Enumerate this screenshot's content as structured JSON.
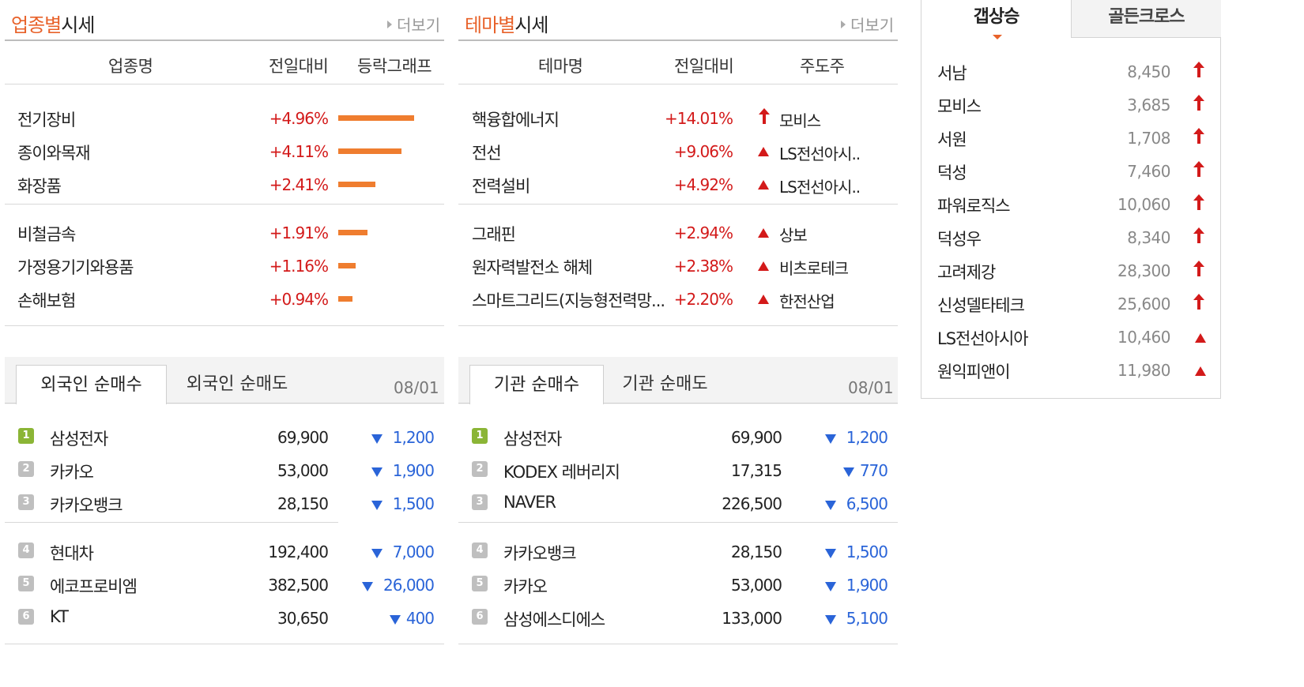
{
  "industry": {
    "title_accent": "업종별",
    "title_rest": "시세",
    "more": "더보기",
    "headers": [
      "업종명",
      "전일대비",
      "등락그래프"
    ],
    "rows": [
      {
        "name": "전기장비",
        "pct": "+4.96%",
        "bar_value": 4.96
      },
      {
        "name": "종이와목재",
        "pct": "+4.11%",
        "bar_value": 4.11
      },
      {
        "name": "화장품",
        "pct": "+2.41%",
        "bar_value": 2.41
      },
      {
        "name": "비철금속",
        "pct": "+1.91%",
        "bar_value": 1.91
      },
      {
        "name": "가정용기기와용품",
        "pct": "+1.16%",
        "bar_value": 1.16
      },
      {
        "name": "손해보험",
        "pct": "+0.94%",
        "bar_value": 0.94
      }
    ]
  },
  "theme": {
    "title_accent": "테마별",
    "title_rest": "시세",
    "more": "더보기",
    "headers": [
      "테마명",
      "전일대비",
      "주도주"
    ],
    "rows": [
      {
        "name": "핵융합에너지",
        "pct": "+14.01%",
        "icon": "up-arrow-icon",
        "leader": "모비스"
      },
      {
        "name": "전선",
        "pct": "+9.06%",
        "icon": "up-triangle-icon",
        "leader": "LS전선아시.."
      },
      {
        "name": "전력설비",
        "pct": "+4.92%",
        "icon": "up-triangle-icon",
        "leader": "LS전선아시.."
      },
      {
        "name": "그래핀",
        "pct": "+2.94%",
        "icon": "up-triangle-icon",
        "leader": "상보"
      },
      {
        "name": "원자력발전소 해체",
        "pct": "+2.38%",
        "icon": "up-triangle-icon",
        "leader": "비츠로테크"
      },
      {
        "name": "스마트그리드(지능형전력망...",
        "pct": "+2.20%",
        "icon": "up-triangle-icon",
        "leader": "한전산업"
      }
    ]
  },
  "foreign": {
    "tabs": [
      "외국인 순매수",
      "외국인 순매도"
    ],
    "date": "08/01",
    "rows": [
      {
        "rank": "1",
        "name": "삼성전자",
        "price": "69,900",
        "change": "1,200"
      },
      {
        "rank": "2",
        "name": "카카오",
        "price": "53,000",
        "change": "1,900"
      },
      {
        "rank": "3",
        "name": "카카오뱅크",
        "price": "28,150",
        "change": "1,500"
      },
      {
        "rank": "4",
        "name": "현대차",
        "price": "192,400",
        "change": "7,000"
      },
      {
        "rank": "5",
        "name": "에코프로비엠",
        "price": "382,500",
        "change": "26,000"
      },
      {
        "rank": "6",
        "name": "KT",
        "price": "30,650",
        "change": "400"
      }
    ]
  },
  "institution": {
    "tabs": [
      "기관 순매수",
      "기관 순매도"
    ],
    "date": "08/01",
    "rows": [
      {
        "rank": "1",
        "name": "삼성전자",
        "price": "69,900",
        "change": "1,200"
      },
      {
        "rank": "2",
        "name": "KODEX 레버리지",
        "price": "17,315",
        "change": "770"
      },
      {
        "rank": "3",
        "name": "NAVER",
        "price": "226,500",
        "change": "6,500"
      },
      {
        "rank": "4",
        "name": "카카오뱅크",
        "price": "28,150",
        "change": "1,500"
      },
      {
        "rank": "5",
        "name": "카카오",
        "price": "53,000",
        "change": "1,900"
      },
      {
        "rank": "6",
        "name": "삼성에스디에스",
        "price": "133,000",
        "change": "5,100"
      }
    ]
  },
  "right_panel": {
    "tabs": [
      "갭상승",
      "골든크로스"
    ],
    "rows": [
      {
        "name": "서남",
        "price": "8,450",
        "icon": "up-arrow-icon"
      },
      {
        "name": "모비스",
        "price": "3,685",
        "icon": "up-arrow-icon"
      },
      {
        "name": "서원",
        "price": "1,708",
        "icon": "up-arrow-icon"
      },
      {
        "name": "덕성",
        "price": "7,460",
        "icon": "up-arrow-icon"
      },
      {
        "name": "파워로직스",
        "price": "10,060",
        "icon": "up-arrow-icon"
      },
      {
        "name": "덕성우",
        "price": "8,340",
        "icon": "up-arrow-icon"
      },
      {
        "name": "고려제강",
        "price": "28,300",
        "icon": "up-arrow-icon"
      },
      {
        "name": "신성델타테크",
        "price": "25,600",
        "icon": "up-arrow-icon"
      },
      {
        "name": "LS전선아시아",
        "price": "10,460",
        "icon": "up-triangle-icon"
      },
      {
        "name": "원익피앤이",
        "price": "11,980",
        "icon": "up-triangle-icon"
      }
    ]
  },
  "colors": {
    "accent": "#e8622a",
    "up": "#d31a1a",
    "down": "#2a64d8",
    "bar": "#ef7d2f",
    "rank_first": "#8bb536"
  }
}
